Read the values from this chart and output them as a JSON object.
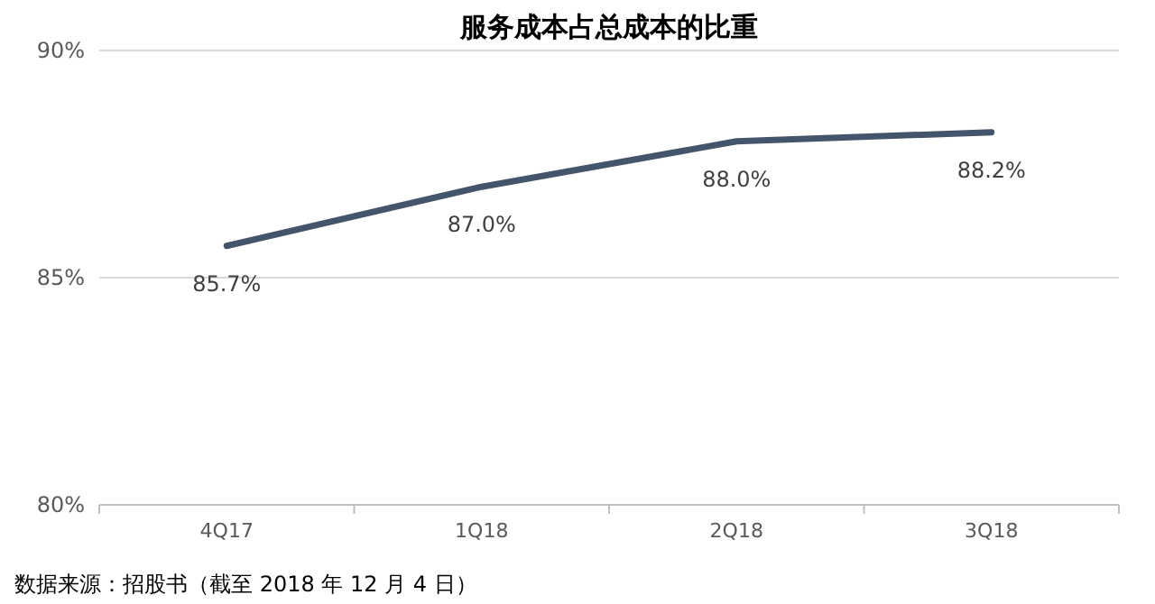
{
  "chart_data": {
    "type": "line",
    "title": "服务成本占总成本的比重",
    "categories": [
      "4Q17",
      "1Q18",
      "2Q18",
      "3Q18"
    ],
    "series": [
      {
        "color": "#44546a",
        "values": [
          85.7,
          87.0,
          88.0,
          88.2
        ],
        "value_labels": [
          "85.7%",
          "87.0%",
          "88.0%",
          "88.2%"
        ]
      }
    ],
    "ylim": [
      80,
      90
    ],
    "yticks": [
      {
        "value": 80,
        "label": "80%"
      },
      {
        "value": 85,
        "label": "85%"
      },
      {
        "value": 90,
        "label": "90%"
      }
    ],
    "grid": "y",
    "annotations": [
      "数据来源：招股书（截至 2018 年 12 月 4 日）"
    ]
  }
}
